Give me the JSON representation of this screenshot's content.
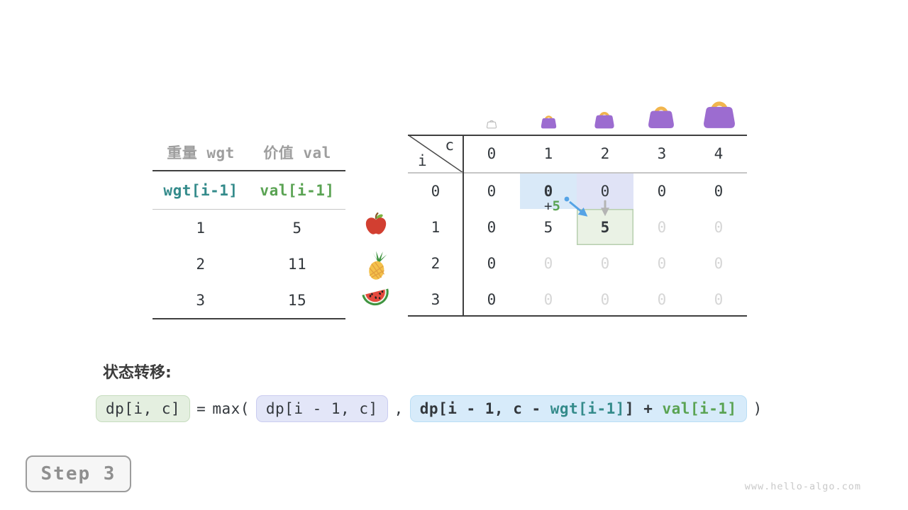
{
  "colors": {
    "dark_text": "#33383d",
    "gray_text": "#9e9e9e",
    "dim": "#d6d6d6",
    "teal": "#348b8b",
    "green": "#5aa353",
    "line_dark": "#3f3f3f",
    "line_light": "#c6c6c6",
    "hl_blue": "#d9e9f8",
    "hl_purple": "#e0e3f6",
    "hl_green_bg": "#eaf2e5",
    "hl_green_border": "#b7cfae",
    "chip_green_bg": "#e4efe0",
    "chip_green_border": "#c6dcbe",
    "chip_purple_bg": "#e3e6f8",
    "chip_purple_border": "#caccf0",
    "chip_blue_bg": "#d7ebfa",
    "chip_blue_border": "#badef5",
    "arrow_blue": "#55a3e6",
    "arrow_gray": "#b4b4b4",
    "bag_purple": "#9c6cd0",
    "bag_handle": "#f1b54e",
    "step_gray": "#8f8f8f",
    "watermark": "#c9c9c9"
  },
  "items_table": {
    "col_headers": [
      "重量 wgt",
      "价值 val"
    ],
    "var_row": [
      "wgt[i-1]",
      "val[i-1]"
    ],
    "rows": [
      [
        "1",
        "5"
      ],
      [
        "2",
        "11"
      ],
      [
        "3",
        "15"
      ]
    ],
    "row_icons": [
      "apple",
      "pineapple",
      "watermelon"
    ]
  },
  "dp_table": {
    "corner_col_label": "c",
    "corner_row_label": "i",
    "col_headers": [
      "0",
      "1",
      "2",
      "3",
      "4"
    ],
    "row_headers": [
      "0",
      "1",
      "2",
      "3"
    ],
    "bag_capacities": [
      "0",
      "1",
      "2",
      "3",
      "4"
    ],
    "cells": [
      [
        {
          "v": "0"
        },
        {
          "v": "0",
          "state": "bold",
          "bg": "blue"
        },
        {
          "v": "0",
          "bg": "purple"
        },
        {
          "v": "0"
        },
        {
          "v": "0"
        }
      ],
      [
        {
          "v": "0"
        },
        {
          "v": "5"
        },
        {
          "v": "5",
          "state": "bold",
          "bg": "green"
        },
        {
          "v": "0",
          "state": "dim"
        },
        {
          "v": "0",
          "state": "dim"
        }
      ],
      [
        {
          "v": "0"
        },
        {
          "v": "0",
          "state": "dim"
        },
        {
          "v": "0",
          "state": "dim"
        },
        {
          "v": "0",
          "state": "dim"
        },
        {
          "v": "0",
          "state": "dim"
        }
      ],
      [
        {
          "v": "0"
        },
        {
          "v": "0",
          "state": "dim"
        },
        {
          "v": "0",
          "state": "dim"
        },
        {
          "v": "0",
          "state": "dim"
        },
        {
          "v": "0",
          "state": "dim"
        }
      ]
    ],
    "annotation_plus": "+",
    "annotation_value": "5"
  },
  "transition": {
    "label": "状态转移:",
    "result_chip": "dp[i, c]",
    "equals": "=",
    "max_open": "max(",
    "option_keep": "dp[i - 1, c]",
    "comma": ",",
    "option_take": [
      {
        "text": "dp[i - 1, c - ",
        "color": "dark"
      },
      {
        "text": "wgt[i-1]",
        "color": "teal"
      },
      {
        "text": "] + ",
        "color": "dark"
      },
      {
        "text": "val[i-1]",
        "color": "green"
      }
    ],
    "close_paren": ")"
  },
  "step_label": "Step 3",
  "watermark": "www.hello-algo.com"
}
